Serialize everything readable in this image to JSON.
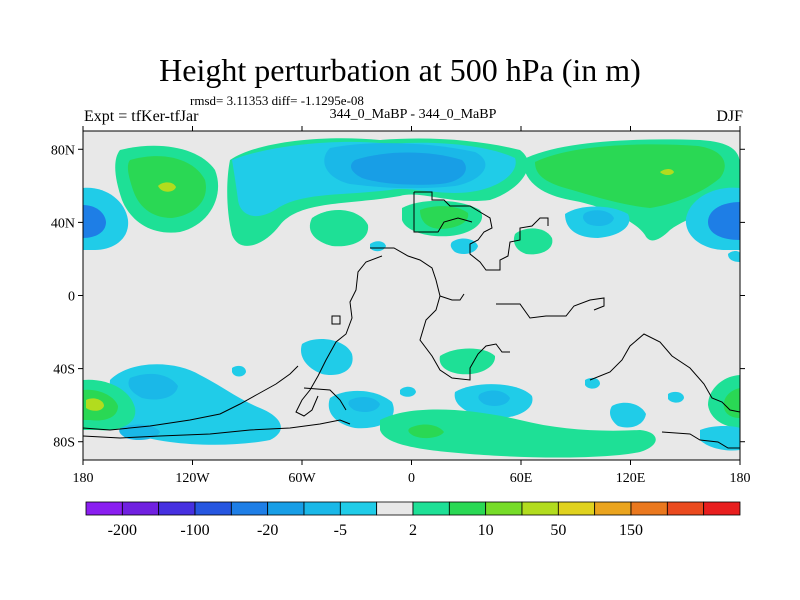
{
  "header": {
    "title": "Height perturbation at 500 hPa (in m)",
    "stats": "rmsd= 3.11353 diff= -1.1295e-08",
    "subtitle": "344_0_MaBP - 344_0_MaBP",
    "left_label": "Expt = tfKer-tfJar",
    "right_label": "DJF"
  },
  "map": {
    "projection": "cylindrical equidistant",
    "lon_range": [
      -180,
      180
    ],
    "lat_range": [
      -90,
      90
    ],
    "lat_ticks": [
      {
        "value": 80,
        "label": "80N"
      },
      {
        "value": 40,
        "label": "40N"
      },
      {
        "value": 0,
        "label": "0"
      },
      {
        "value": -40,
        "label": "40S"
      },
      {
        "value": -80,
        "label": "80S"
      }
    ],
    "lon_ticks": [
      {
        "value": -180,
        "label": "180"
      },
      {
        "value": -120,
        "label": "120W"
      },
      {
        "value": -60,
        "label": "60W"
      },
      {
        "value": 0,
        "label": "0"
      },
      {
        "value": 60,
        "label": "60E"
      },
      {
        "value": 120,
        "label": "120E"
      },
      {
        "value": 180,
        "label": "180"
      }
    ],
    "background_color": "#e8e8e8"
  },
  "colorbar": {
    "labels": [
      "-200",
      "-100",
      "-20",
      "-5",
      "2",
      "10",
      "50",
      "150"
    ],
    "colors": [
      "#8a1ef0",
      "#7020e0",
      "#4630e0",
      "#2656e0",
      "#1e7ee6",
      "#189ee6",
      "#1ab8e8",
      "#20cce8",
      "#e8e8e8",
      "#1ee096",
      "#2ad854",
      "#76dc28",
      "#b2dc1e",
      "#e0d21e",
      "#eaa41e",
      "#ea781e",
      "#ea4a1e",
      "#e81e1e"
    ]
  }
}
